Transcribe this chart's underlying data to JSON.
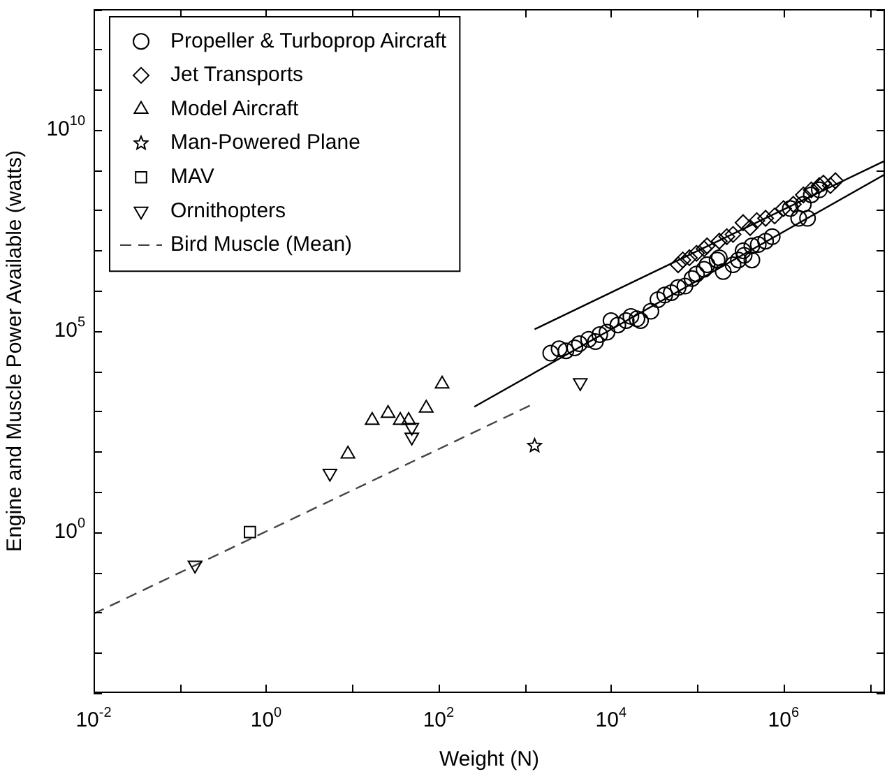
{
  "chart_data": {
    "type": "scatter",
    "xlabel": "Weight (N)",
    "ylabel": "Engine and Muscle Power Available (watts)",
    "log": "xy",
    "grid": false,
    "legend": "top left",
    "xlim": [
      0.01,
      15000000
    ],
    "ylim": [
      0.0001,
      10000000000000
    ],
    "xticks": [
      {
        "value": 0.01,
        "label": "10$^{-2}$"
      },
      {
        "value": 0.1,
        "label": null
      },
      {
        "value": 1,
        "label": "10$^{0}$"
      },
      {
        "value": 10,
        "label": null
      },
      {
        "value": 100,
        "label": "10$^{2}$"
      },
      {
        "value": 1000,
        "label": null
      },
      {
        "value": 10000,
        "label": "10$^{4}$"
      },
      {
        "value": 100000,
        "label": null
      },
      {
        "value": 1000000,
        "label": "10$^{6}$"
      },
      {
        "value": 10000000,
        "label": null
      }
    ],
    "yticks": [
      {
        "value": 0.0001,
        "label": null
      },
      {
        "value": 0.001,
        "label": null
      },
      {
        "value": 0.01,
        "label": null
      },
      {
        "value": 0.1,
        "label": null
      },
      {
        "value": 1,
        "label": "10$^{0}$"
      },
      {
        "value": 10,
        "label": null
      },
      {
        "value": 100,
        "label": null
      },
      {
        "value": 1000,
        "label": null
      },
      {
        "value": 10000,
        "label": null
      },
      {
        "value": 100000,
        "label": "10$^{5}$"
      },
      {
        "value": 1000000,
        "label": null
      },
      {
        "value": 10000000,
        "label": null
      },
      {
        "value": 100000000,
        "label": null
      },
      {
        "value": 1000000000,
        "label": null
      },
      {
        "value": 10000000000,
        "label": "10$^{10}$"
      },
      {
        "value": 100000000000,
        "label": null
      },
      {
        "value": 1000000000000,
        "label": null
      },
      {
        "value": 10000000000000,
        "label": null
      }
    ],
    "series": [
      {
        "name": "Propeller & Turboprop Aircraft",
        "marker": "circle",
        "color": "#000000",
        "x": [
          2000,
          2500,
          3000,
          3800,
          4300,
          5500,
          6600,
          7400,
          9000,
          10000,
          12000,
          15000,
          17000,
          20000,
          22000,
          29000,
          35000,
          42000,
          50000,
          60000,
          72000,
          87000,
          98000,
          120000,
          130000,
          170000,
          180000,
          200000,
          260000,
          300000,
          340000,
          350000,
          430000,
          430000,
          510000,
          620000,
          740000,
          1200000,
          1500000,
          1700000,
          1900000,
          2100000,
          2600000
        ],
        "values": [
          28000,
          36000,
          32000,
          38000,
          48000,
          62000,
          54000,
          81000,
          93000,
          180000,
          140000,
          180000,
          230000,
          200000,
          180000,
          310000,
          600000,
          780000,
          890000,
          1200000,
          1300000,
          2000000,
          2600000,
          3400000,
          4400000,
          5800000,
          6600000,
          3000000,
          4400000,
          5800000,
          9800000,
          7600000,
          13000000,
          5800000,
          14000000,
          17000000,
          22000000,
          110000000,
          63000000,
          140000000,
          63000000,
          240000000,
          320000000
        ]
      },
      {
        "name": "Jet Transports",
        "marker": "diamond",
        "color": "#000000",
        "x": [
          60000,
          68000,
          81000,
          98000,
          120000,
          130000,
          180000,
          220000,
          260000,
          340000,
          410000,
          490000,
          620000,
          790000,
          1000000,
          1300000,
          1700000,
          2100000,
          2600000,
          2900000,
          3500000,
          4000000
        ],
        "values": [
          4400000,
          5800000,
          6600000,
          8500000,
          11000000,
          13000000,
          17000000,
          22000000,
          25000000,
          49000000,
          37000000,
          55000000,
          63000000,
          72000000,
          110000000,
          140000000,
          240000000,
          320000000,
          410000000,
          470000000,
          410000000,
          540000000
        ]
      },
      {
        "name": "Model Aircraft",
        "marker": "triangle",
        "color": "#000000",
        "x": [
          8.9,
          17,
          26,
          36,
          45,
          72,
          110
        ],
        "values": [
          87,
          600,
          890,
          600,
          600,
          1200,
          4800
        ]
      },
      {
        "name": "Man-Powered Plane",
        "marker": "star",
        "color": "#000000",
        "x": [
          1300
        ],
        "values": [
          140
        ]
      },
      {
        "name": "MAV",
        "marker": "square",
        "color": "#000000",
        "x": [
          0.65
        ],
        "values": [
          1
        ]
      },
      {
        "name": "Ornithopters",
        "marker": "triangle-down",
        "color": "#000000",
        "x": [
          0.15,
          5.5,
          49,
          49,
          4400
        ],
        "values": [
          0.15,
          29,
          400,
          230,
          5200
        ]
      },
      {
        "name": "Bird Muscle (Mean)",
        "type": "line",
        "marker": "none",
        "line_style": "dashed",
        "color": "#444444",
        "x": [
          0.01,
          1150
        ],
        "values": [
          0.0093,
          1400
        ]
      },
      {
        "type": "line",
        "marker": "none",
        "line_style": "solid",
        "color": "#000000",
        "x": [
          260,
          15000000
        ],
        "values": [
          1300,
          780000000
        ]
      },
      {
        "type": "line",
        "marker": "none",
        "line_style": "solid",
        "color": "#000000",
        "x": [
          1300,
          15000000
        ],
        "values": [
          110000,
          1700000000
        ]
      }
    ]
  }
}
